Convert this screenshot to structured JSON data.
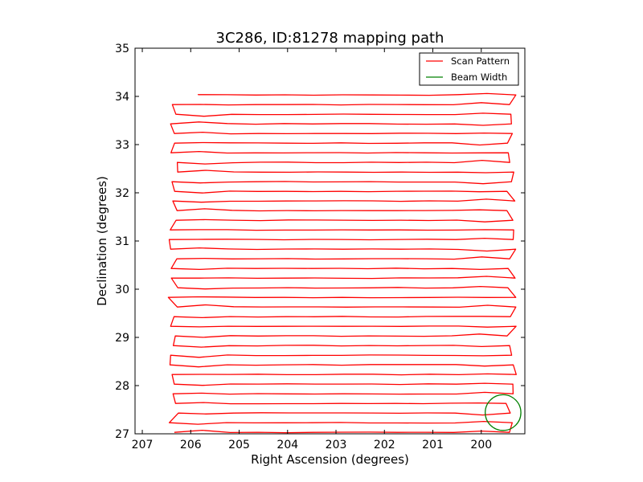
{
  "chart_data": {
    "type": "line",
    "title": "3C286, ID:81278 mapping path",
    "xlabel": "Right Ascension (degrees)",
    "ylabel": "Declination (degrees)",
    "xlim": [
      207.15,
      199.1
    ],
    "ylim": [
      27,
      35
    ],
    "xticks": [
      207,
      206,
      205,
      204,
      203,
      202,
      201,
      200
    ],
    "xtick_labels": [
      "207",
      "206",
      "205",
      "204",
      "203",
      "202",
      "201",
      "200"
    ],
    "yticks": [
      27,
      28,
      29,
      30,
      31,
      32,
      33,
      34,
      35
    ],
    "ytick_labels": [
      "27",
      "28",
      "29",
      "30",
      "31",
      "32",
      "33",
      "34",
      "35"
    ],
    "grid": false,
    "legend_position": "top-right",
    "series": [
      {
        "name": "Scan Pattern",
        "color": "#ff0000",
        "path": "raster",
        "ra_left": 206.3,
        "ra_right": 199.45,
        "dec_start": 34.03,
        "dec_end": 27.05,
        "row_spacing": 0.2
      },
      {
        "name": "Beam Width",
        "color": "#008000",
        "shape": "circle",
        "center": [
          199.55,
          27.44
        ],
        "radius_deg": 0.37
      }
    ]
  }
}
